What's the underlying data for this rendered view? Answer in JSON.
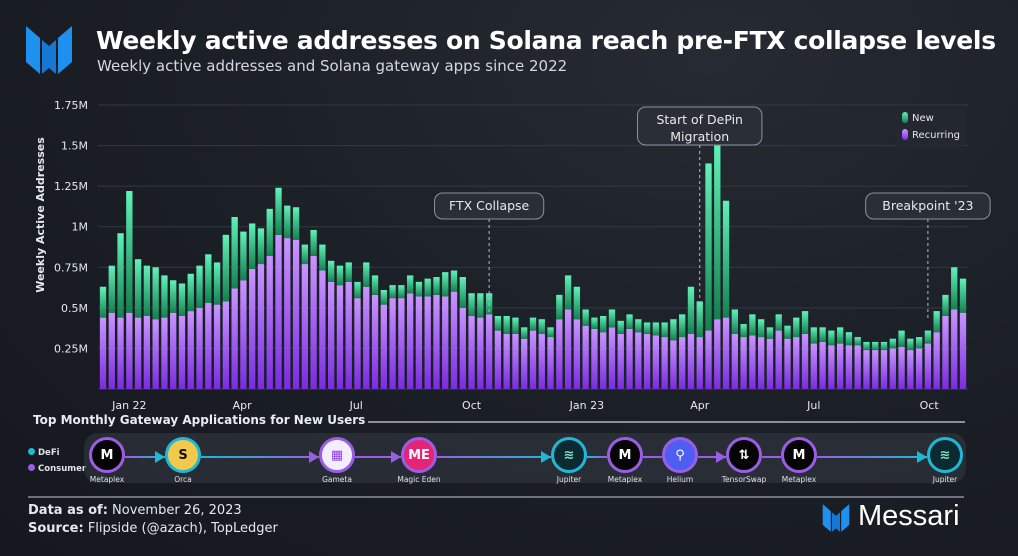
{
  "header": {
    "title": "Weekly active addresses on Solana reach pre-FTX collapse levels",
    "subtitle": "Weekly active addresses and Solana gateway apps since 2022",
    "brand_color": "#1e90f0"
  },
  "chart_data": {
    "type": "bar",
    "stacked": true,
    "ylabel": "Weekly Active Addresses",
    "xlabel": "",
    "ylim": [
      0,
      1750000
    ],
    "y_ticks": [
      "0.25M",
      "0.5M",
      "0.75M",
      "1M",
      "1.25M",
      "1.5M",
      "1.75M"
    ],
    "y_tick_values": [
      250000,
      500000,
      750000,
      1000000,
      1250000,
      1500000,
      1750000
    ],
    "x_ticks": [
      {
        "label": "Jan 22",
        "date": "2022-01-01"
      },
      {
        "label": "Apr",
        "date": "2022-04-01"
      },
      {
        "label": "Jul",
        "date": "2022-07-01"
      },
      {
        "label": "Oct",
        "date": "2022-10-01"
      },
      {
        "label": "Jan 23",
        "date": "2023-01-01"
      },
      {
        "label": "Apr",
        "date": "2023-04-01"
      },
      {
        "label": "Jul",
        "date": "2023-07-01"
      },
      {
        "label": "Oct",
        "date": "2023-10-01"
      }
    ],
    "grid": true,
    "legend_position": "top-right",
    "x": [
      "2021-12-11",
      "2021-12-18",
      "2021-12-25",
      "2022-01-01",
      "2022-01-08",
      "2022-01-15",
      "2022-01-22",
      "2022-01-29",
      "2022-02-05",
      "2022-02-12",
      "2022-02-19",
      "2022-02-26",
      "2022-03-05",
      "2022-03-12",
      "2022-03-19",
      "2022-03-26",
      "2022-04-02",
      "2022-04-09",
      "2022-04-16",
      "2022-04-23",
      "2022-04-30",
      "2022-05-07",
      "2022-05-14",
      "2022-05-21",
      "2022-05-28",
      "2022-06-04",
      "2022-06-11",
      "2022-06-18",
      "2022-06-25",
      "2022-07-02",
      "2022-07-09",
      "2022-07-16",
      "2022-07-23",
      "2022-07-30",
      "2022-08-06",
      "2022-08-13",
      "2022-08-20",
      "2022-08-27",
      "2022-09-03",
      "2022-09-10",
      "2022-09-17",
      "2022-09-24",
      "2022-10-01",
      "2022-10-08",
      "2022-10-15",
      "2022-10-22",
      "2022-10-29",
      "2022-11-05",
      "2022-11-12",
      "2022-11-19",
      "2022-11-26",
      "2022-12-03",
      "2022-12-10",
      "2022-12-17",
      "2022-12-24",
      "2022-12-31",
      "2023-01-07",
      "2023-01-14",
      "2023-01-21",
      "2023-01-28",
      "2023-02-04",
      "2023-02-11",
      "2023-02-18",
      "2023-02-25",
      "2023-03-04",
      "2023-03-11",
      "2023-03-18",
      "2023-03-25",
      "2023-04-01",
      "2023-04-08",
      "2023-04-15",
      "2023-04-22",
      "2023-04-29",
      "2023-05-06",
      "2023-05-13",
      "2023-05-20",
      "2023-05-27",
      "2023-06-03",
      "2023-06-10",
      "2023-06-17",
      "2023-06-24",
      "2023-07-01",
      "2023-07-08",
      "2023-07-15",
      "2023-07-22",
      "2023-07-29",
      "2023-08-05",
      "2023-08-12",
      "2023-08-19",
      "2023-08-26",
      "2023-09-02",
      "2023-09-09",
      "2023-09-16",
      "2023-09-23",
      "2023-09-30",
      "2023-10-07",
      "2023-10-14",
      "2023-10-21",
      "2023-10-28"
    ],
    "series": [
      {
        "name": "Recurring",
        "color": "#9b4dff",
        "values": [
          440000,
          470000,
          440000,
          470000,
          440000,
          450000,
          430000,
          440000,
          470000,
          450000,
          480000,
          500000,
          530000,
          520000,
          540000,
          620000,
          670000,
          740000,
          770000,
          820000,
          950000,
          930000,
          920000,
          770000,
          820000,
          730000,
          660000,
          640000,
          660000,
          560000,
          630000,
          580000,
          520000,
          560000,
          560000,
          590000,
          570000,
          570000,
          580000,
          570000,
          600000,
          500000,
          450000,
          440000,
          460000,
          360000,
          340000,
          340000,
          310000,
          360000,
          340000,
          320000,
          430000,
          490000,
          430000,
          390000,
          370000,
          350000,
          380000,
          340000,
          370000,
          350000,
          340000,
          330000,
          320000,
          300000,
          320000,
          340000,
          320000,
          360000,
          430000,
          440000,
          340000,
          320000,
          330000,
          320000,
          310000,
          360000,
          310000,
          320000,
          340000,
          280000,
          290000,
          270000,
          280000,
          270000,
          270000,
          240000,
          240000,
          240000,
          250000,
          260000,
          240000,
          250000,
          280000,
          350000,
          450000,
          490000,
          470000
        ]
      },
      {
        "name": "New",
        "color": "#2ee59d",
        "values": [
          190000,
          290000,
          520000,
          750000,
          360000,
          310000,
          320000,
          260000,
          200000,
          200000,
          230000,
          260000,
          300000,
          260000,
          410000,
          440000,
          300000,
          280000,
          220000,
          290000,
          290000,
          200000,
          200000,
          120000,
          160000,
          160000,
          130000,
          120000,
          120000,
          100000,
          150000,
          120000,
          90000,
          80000,
          80000,
          110000,
          90000,
          110000,
          110000,
          150000,
          130000,
          190000,
          140000,
          150000,
          130000,
          90000,
          110000,
          100000,
          70000,
          80000,
          90000,
          60000,
          150000,
          210000,
          200000,
          100000,
          70000,
          100000,
          110000,
          80000,
          90000,
          80000,
          70000,
          80000,
          90000,
          130000,
          140000,
          290000,
          220000,
          1030000,
          1070000,
          720000,
          150000,
          80000,
          130000,
          110000,
          70000,
          100000,
          80000,
          120000,
          140000,
          100000,
          90000,
          90000,
          100000,
          80000,
          50000,
          50000,
          50000,
          50000,
          60000,
          100000,
          70000,
          70000,
          80000,
          130000,
          130000,
          260000,
          210000
        ]
      }
    ],
    "legend": [
      "New",
      "Recurring"
    ],
    "annotations": [
      {
        "label": "FTX Collapse",
        "date": "2022-10-15"
      },
      {
        "label": "Start of DePin Migration",
        "date": "2023-04-01"
      },
      {
        "label": "Breakpoint '23",
        "date": "2023-09-30"
      }
    ]
  },
  "gateway": {
    "title": "Top Monthly Gateway Applications for New Users",
    "legend": [
      {
        "label": "DeFi",
        "color": "#1fb8d6"
      },
      {
        "label": "Consumer",
        "color": "#9b5de5"
      }
    ],
    "apps": [
      {
        "name": "Metaplex",
        "category": "Consumer",
        "icon": "metaplex-logo-icon",
        "glyph": "M"
      },
      {
        "name": "Orca",
        "category": "DeFi",
        "icon": "orca-logo-icon",
        "glyph": "S"
      },
      {
        "name": "Gameta",
        "category": "Consumer",
        "icon": "gameta-logo-icon",
        "glyph": "▦"
      },
      {
        "name": "Magic Eden",
        "category": "Consumer",
        "icon": "magic-eden-logo-icon",
        "glyph": "ME"
      },
      {
        "name": "Jupiter",
        "category": "DeFi",
        "icon": "jupiter-logo-icon",
        "glyph": "≋"
      },
      {
        "name": "Metaplex",
        "category": "Consumer",
        "icon": "metaplex-logo-icon",
        "glyph": "M"
      },
      {
        "name": "Helium",
        "category": "Consumer",
        "icon": "helium-logo-icon",
        "glyph": "⚲"
      },
      {
        "name": "TensorSwap",
        "category": "Consumer",
        "icon": "tensorswap-logo-icon",
        "glyph": "⇅"
      },
      {
        "name": "Metaplex",
        "category": "Consumer",
        "icon": "metaplex-logo-icon",
        "glyph": "M"
      },
      {
        "name": "Jupiter",
        "category": "DeFi",
        "icon": "jupiter-logo-icon",
        "glyph": "≋"
      }
    ]
  },
  "footer": {
    "asof_label": "Data as of:",
    "asof_value": "November 26, 2023",
    "source_label": "Source:",
    "source_value": "Flipside (@azach), TopLedger",
    "brand": "Messari"
  }
}
